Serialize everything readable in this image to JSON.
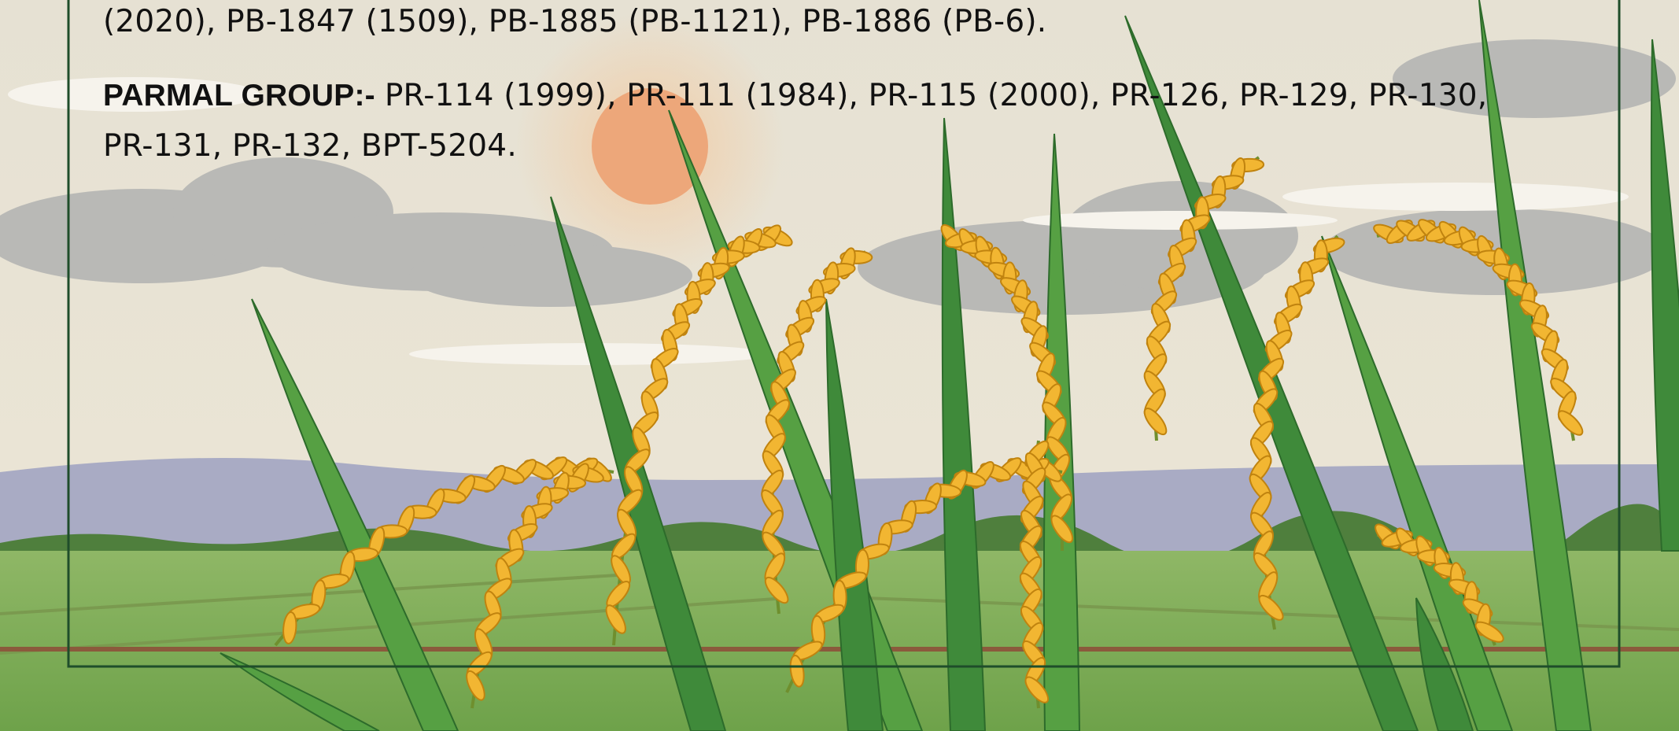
{
  "paragraphs": [
    {
      "text": "(2020), PB-1847 (1509), PB-1885 (PB-1121), PB-1886 (PB-6)."
    },
    {
      "label": "PARMAL GROUP:-",
      "text": "PR-114 (1999), PR-111 (1984), PR-115 (2000), PR-126, PR-129, PR-130, PR-131, PR-132, BPT-5204."
    }
  ]
}
